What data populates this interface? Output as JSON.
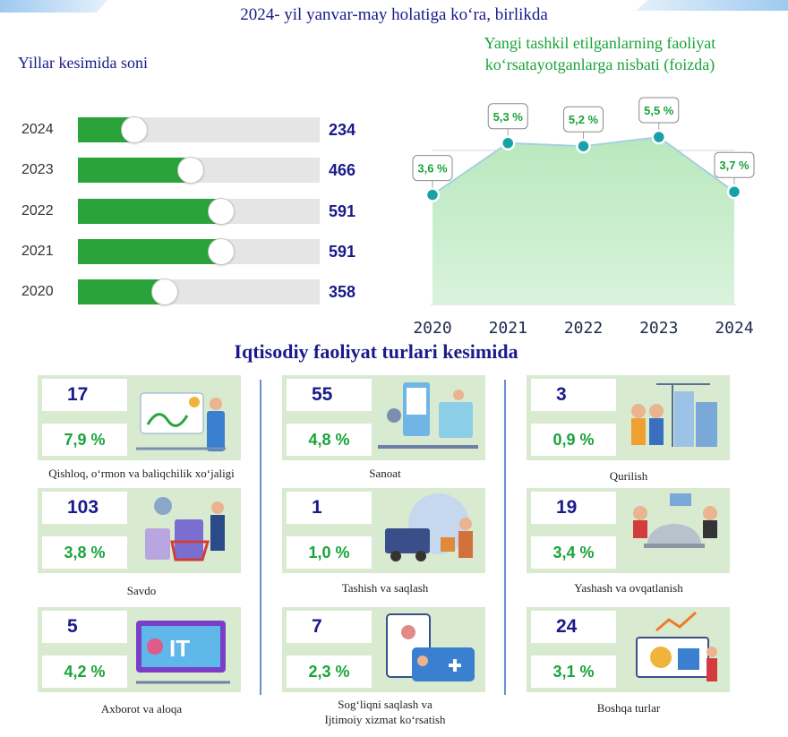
{
  "header": {
    "title": "2024- yil yanvar-may holatiga koʻra, birlikda",
    "left_subtitle": "Yillar kesimida soni",
    "right_subtitle_line1": "Yangi tashkil etilganlarning faoliyat",
    "right_subtitle_line2": "koʻrsatayotganlarga nisbati (foizda)"
  },
  "colors": {
    "navy": "#1a1a8c",
    "green": "#2aa43a",
    "text_green": "#1aa33a",
    "teal": "#17a2a8",
    "area": "#c8ecc8"
  },
  "chart_data": [
    {
      "type": "bar",
      "orientation": "horizontal",
      "title": "Yillar kesimida soni",
      "categories": [
        "2024",
        "2023",
        "2022",
        "2021",
        "2020"
      ],
      "values": [
        234,
        466,
        591,
        591,
        358
      ],
      "value_labels": [
        "234",
        "466",
        "591",
        "591",
        "358"
      ],
      "xlim": [
        0,
        1000
      ]
    },
    {
      "type": "area",
      "title": "Yangi tashkil etilganlarning faoliyat koʻrsatayotganlarga nisbati (foizda)",
      "x": [
        "2020",
        "2021",
        "2022",
        "2023",
        "2024"
      ],
      "values": [
        3.6,
        5.3,
        5.2,
        5.5,
        3.7
      ],
      "value_labels": [
        "3,6 %",
        "5,3 %",
        "5,2 %",
        "5,5 %",
        "3,7 %"
      ],
      "ylim": [
        0,
        6
      ]
    }
  ],
  "sectors": {
    "title": "Iqtisodiy faoliyat turlari kesimida",
    "items": [
      {
        "count": "17",
        "percent": "7,9 %",
        "label": "Qishloq, oʻrmon va baliqchilik xoʻjaligi",
        "label2": "",
        "icon": "agriculture-illustration"
      },
      {
        "count": "55",
        "percent": "4,8 %",
        "label": "Sanoat",
        "label2": "",
        "icon": "industry-illustration"
      },
      {
        "count": "3",
        "percent": "0,9 %",
        "label": "Qurilish",
        "label2": "",
        "icon": "construction-illustration"
      },
      {
        "count": "103",
        "percent": "3,8 %",
        "label": "Savdo",
        "label2": "",
        "icon": "trade-illustration"
      },
      {
        "count": "1",
        "percent": "1,0 %",
        "label": "Tashish va saqlash",
        "label2": "",
        "icon": "transport-illustration"
      },
      {
        "count": "19",
        "percent": "3,4 %",
        "label": "Yashash va ovqatlanish",
        "label2": "",
        "icon": "hospitality-illustration"
      },
      {
        "count": "5",
        "percent": "4,2 %",
        "label": "Axborot va aloqa",
        "label2": "",
        "icon": "it-illustration"
      },
      {
        "count": "7",
        "percent": "2,3 %",
        "label": "Sogʻliqni saqlash va",
        "label2": "Ijtimoiy xizmat koʻrsatish",
        "icon": "healthcare-illustration"
      },
      {
        "count": "24",
        "percent": "3,1 %",
        "label": "Boshqa turlar",
        "label2": "",
        "icon": "other-illustration"
      }
    ]
  }
}
